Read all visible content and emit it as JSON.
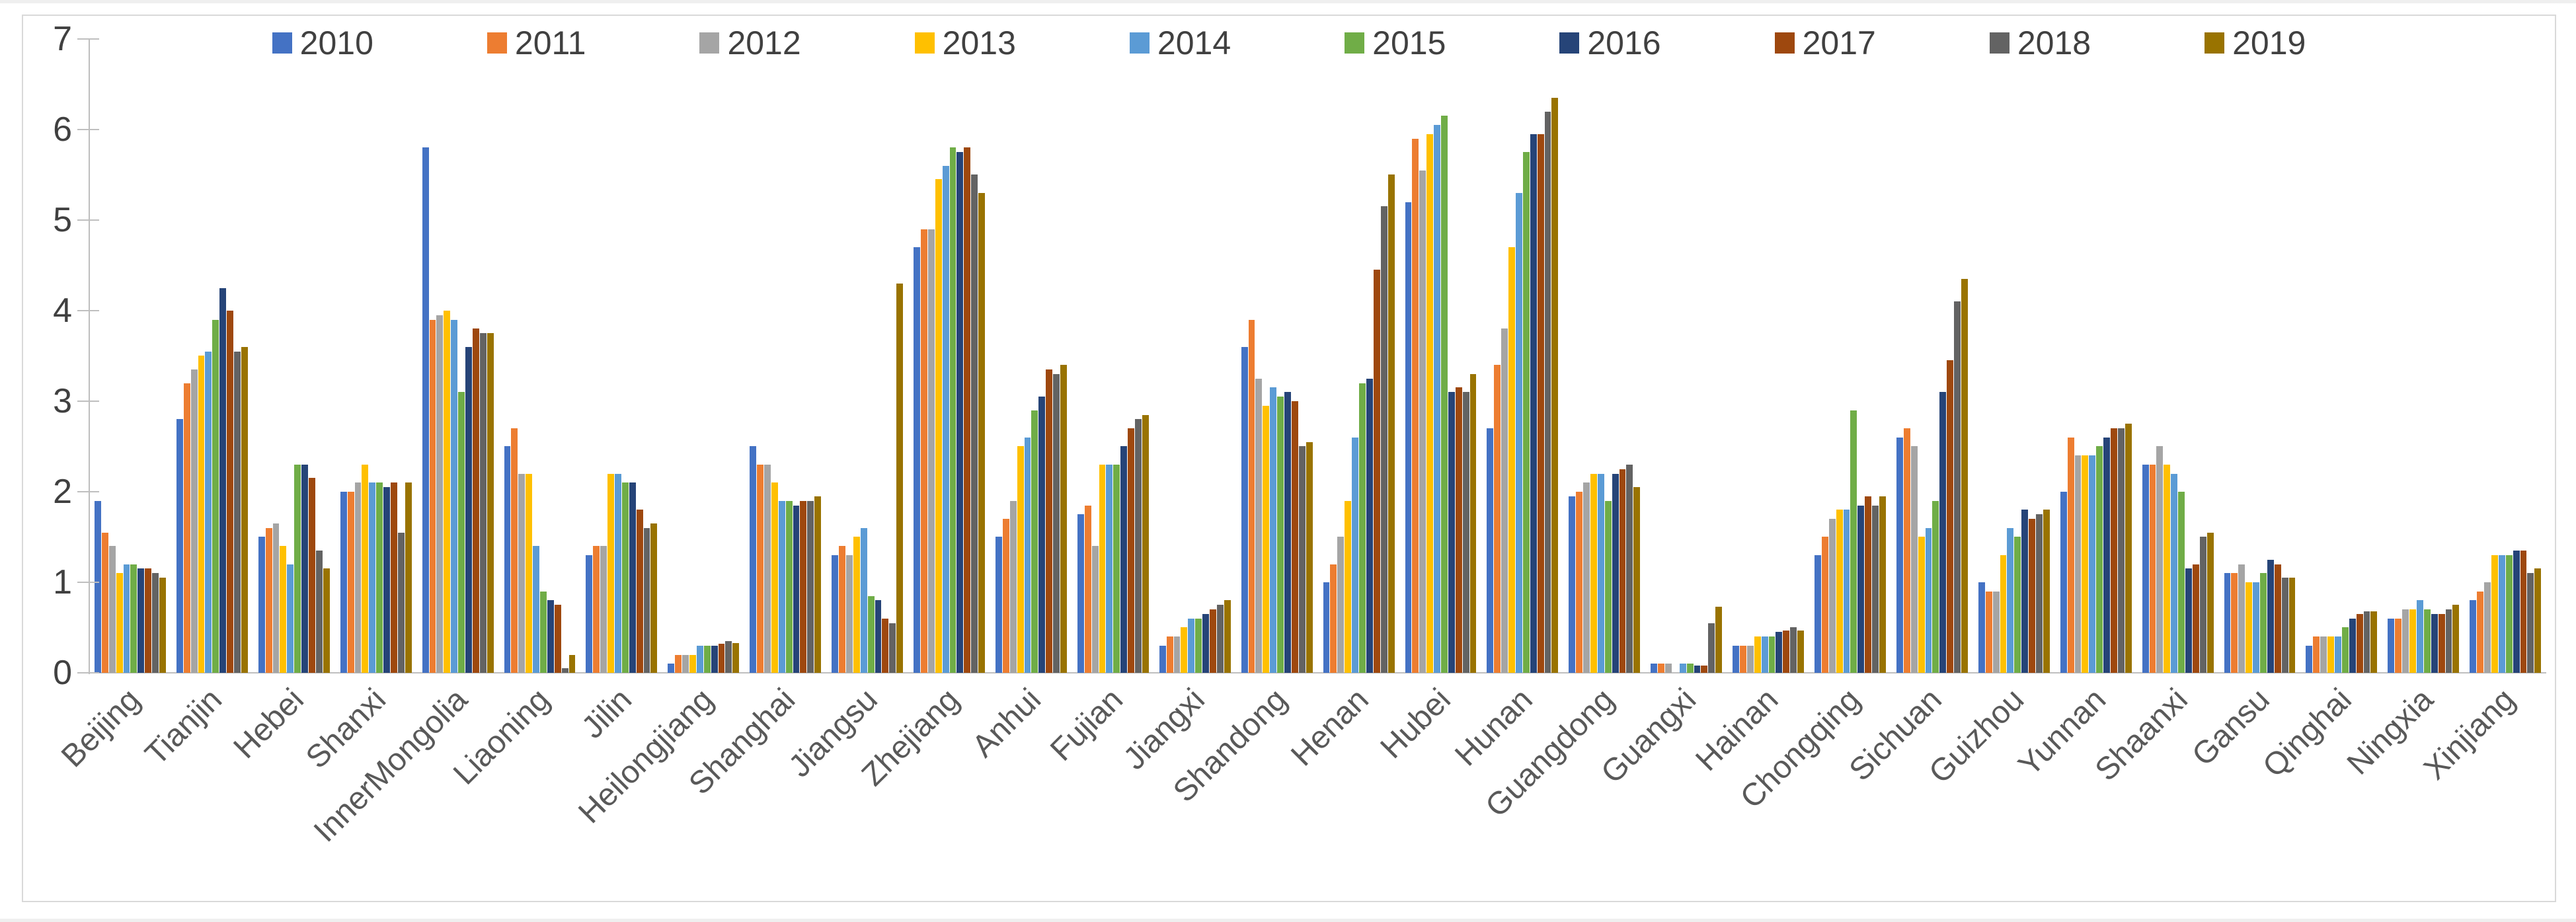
{
  "chart_data": {
    "type": "bar",
    "title": "",
    "xlabel": "",
    "ylabel": "",
    "ylim": [
      0,
      7
    ],
    "y_ticks": [
      "0",
      "1",
      "2",
      "3",
      "4",
      "5",
      "6",
      "7"
    ],
    "grid": false,
    "legend_position": "top",
    "categories": [
      "Beijing",
      "Tianjin",
      "Hebei",
      "Shanxi",
      "InnerMongolia",
      "Liaoning",
      "Jilin",
      "Heilongjiang",
      "Shanghai",
      "Jiangsu",
      "Zhejiang",
      "Anhui",
      "Fujian",
      "Jiangxi",
      "Shandong",
      "Henan",
      "Hubei",
      "Hunan",
      "Guangdong",
      "Guangxi",
      "Hainan",
      "Chongqing",
      "Sichuan",
      "Guizhou",
      "Yunnan",
      "Shaanxi",
      "Gansu",
      "Qinghai",
      "Ningxia",
      "Xinjiang"
    ],
    "series": [
      {
        "name": "2010",
        "color": "#4472C4",
        "values": [
          1.9,
          2.8,
          1.5,
          2.0,
          5.8,
          2.5,
          1.3,
          0.1,
          2.5,
          1.3,
          4.7,
          1.5,
          1.75,
          0.3,
          3.6,
          1.0,
          5.2,
          2.7,
          1.95,
          0.1,
          0.3,
          1.3,
          2.6,
          1.0,
          2.0,
          2.3,
          1.1,
          0.3,
          0.6,
          0.8
        ]
      },
      {
        "name": "2011",
        "color": "#ED7D31",
        "values": [
          1.55,
          3.2,
          1.6,
          2.0,
          3.9,
          2.7,
          1.4,
          0.2,
          2.3,
          1.4,
          4.9,
          1.7,
          1.85,
          0.4,
          3.9,
          1.2,
          5.9,
          3.4,
          2.0,
          0.1,
          0.3,
          1.5,
          2.7,
          0.9,
          2.6,
          2.3,
          1.1,
          0.4,
          0.6,
          0.9
        ]
      },
      {
        "name": "2012",
        "color": "#A5A5A5",
        "values": [
          1.4,
          3.35,
          1.65,
          2.1,
          3.95,
          2.2,
          1.4,
          0.2,
          2.3,
          1.3,
          4.9,
          1.9,
          1.4,
          0.4,
          3.25,
          1.5,
          5.55,
          3.8,
          2.1,
          0.1,
          0.3,
          1.7,
          2.5,
          0.9,
          2.4,
          2.5,
          1.2,
          0.4,
          0.7,
          1.0
        ]
      },
      {
        "name": "2013",
        "color": "#FFC000",
        "values": [
          1.1,
          3.5,
          1.4,
          2.3,
          4.0,
          2.2,
          2.2,
          0.2,
          2.1,
          1.5,
          5.45,
          2.5,
          2.3,
          0.5,
          2.95,
          1.9,
          5.95,
          4.7,
          2.2,
          0,
          0.4,
          1.8,
          1.5,
          1.3,
          2.4,
          2.3,
          1.0,
          0.4,
          0.7,
          1.3
        ]
      },
      {
        "name": "2014",
        "color": "#5B9BD5",
        "values": [
          1.2,
          3.55,
          1.2,
          2.1,
          3.9,
          1.4,
          2.2,
          0.3,
          1.9,
          1.6,
          5.6,
          2.6,
          2.3,
          0.6,
          3.15,
          2.6,
          6.05,
          5.3,
          2.2,
          0.1,
          0.4,
          1.8,
          1.6,
          1.6,
          2.4,
          2.2,
          1.0,
          0.4,
          0.8,
          1.3
        ]
      },
      {
        "name": "2015",
        "color": "#70AD47",
        "values": [
          1.2,
          3.9,
          2.3,
          2.1,
          3.1,
          0.9,
          2.1,
          0.3,
          1.9,
          0.85,
          5.8,
          2.9,
          2.3,
          0.6,
          3.05,
          3.2,
          6.15,
          5.75,
          1.9,
          0.1,
          0.4,
          2.9,
          1.9,
          1.5,
          2.5,
          2.0,
          1.1,
          0.5,
          0.7,
          1.3
        ]
      },
      {
        "name": "2016",
        "color": "#264478",
        "values": [
          1.15,
          4.25,
          2.3,
          2.05,
          3.6,
          0.8,
          2.1,
          0.3,
          1.85,
          0.8,
          5.75,
          3.05,
          2.5,
          0.65,
          3.1,
          3.25,
          3.1,
          5.95,
          2.2,
          0.08,
          0.45,
          1.85,
          3.1,
          1.8,
          2.6,
          1.15,
          1.25,
          0.6,
          0.65,
          1.35
        ]
      },
      {
        "name": "2017",
        "color": "#9E480E",
        "values": [
          1.15,
          4.0,
          2.15,
          2.1,
          3.8,
          0.75,
          1.8,
          0.32,
          1.9,
          0.6,
          5.8,
          3.35,
          2.7,
          0.7,
          3.0,
          4.45,
          3.15,
          5.95,
          2.25,
          0.08,
          0.47,
          1.95,
          3.45,
          1.7,
          2.7,
          1.2,
          1.2,
          0.65,
          0.65,
          1.35
        ]
      },
      {
        "name": "2018",
        "color": "#636363",
        "values": [
          1.1,
          3.55,
          1.35,
          1.55,
          3.75,
          0.05,
          1.6,
          0.35,
          1.9,
          0.55,
          5.5,
          3.3,
          2.8,
          0.75,
          2.5,
          5.15,
          3.1,
          6.2,
          2.3,
          0.55,
          0.5,
          1.85,
          4.1,
          1.75,
          2.7,
          1.5,
          1.05,
          0.68,
          0.7,
          1.1
        ]
      },
      {
        "name": "2019",
        "color": "#997300",
        "values": [
          1.05,
          3.6,
          1.15,
          2.1,
          3.75,
          0.2,
          1.65,
          0.33,
          1.95,
          4.3,
          5.3,
          3.4,
          2.85,
          0.8,
          2.55,
          5.5,
          3.3,
          6.35,
          2.05,
          0.73,
          0.47,
          1.95,
          4.35,
          1.8,
          2.75,
          1.55,
          1.05,
          0.68,
          0.75,
          1.15
        ]
      }
    ]
  },
  "colors": {
    "frame_border": "#D9D9D9",
    "axis": "#BFBFBF",
    "y_tick_label": "#404040",
    "category_label": "#595959",
    "legend_label": "#404040",
    "background": "#FFFFFF"
  }
}
